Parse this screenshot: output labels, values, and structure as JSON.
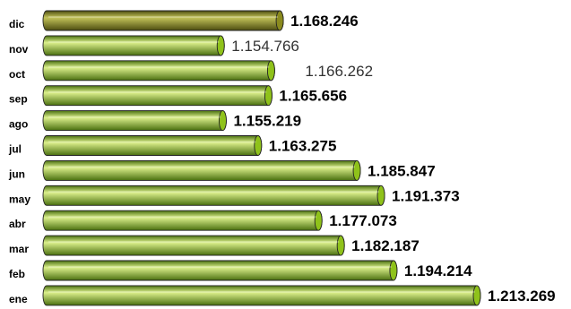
{
  "chart_data": {
    "type": "bar",
    "orientation": "horizontal",
    "categories": [
      "dic",
      "nov",
      "oct",
      "sep",
      "ago",
      "jul",
      "jun",
      "may",
      "abr",
      "mar",
      "feb",
      "ene"
    ],
    "values": [
      1168246,
      1154766,
      1166262,
      1165656,
      1155219,
      1163275,
      1185847,
      1191373,
      1177073,
      1182187,
      1194214,
      1213269
    ],
    "value_labels": [
      "1.168.246",
      "1.154.766",
      "1.166.262",
      "1.165.656",
      "1.155.219",
      "1.163.275",
      "1.185.847",
      "1.191.373",
      "1.177.073",
      "1.182.187",
      "1.194.214",
      "1.213.269"
    ],
    "label_emphasis": [
      "bold",
      "normal",
      "normal",
      "bold",
      "bold",
      "bold",
      "bold",
      "bold",
      "bold",
      "bold",
      "bold",
      "bold"
    ],
    "highlight_index": 0,
    "colors": {
      "highlight": "#8a8a1e",
      "highlight_light": "#c3c35a",
      "highlight_dark": "#4d4d10",
      "bar": "#8fc21a",
      "bar_light": "#dcf08c",
      "bar_dark": "#4a7010"
    },
    "grid": false,
    "title": "",
    "xlabel": "",
    "ylabel": ""
  }
}
